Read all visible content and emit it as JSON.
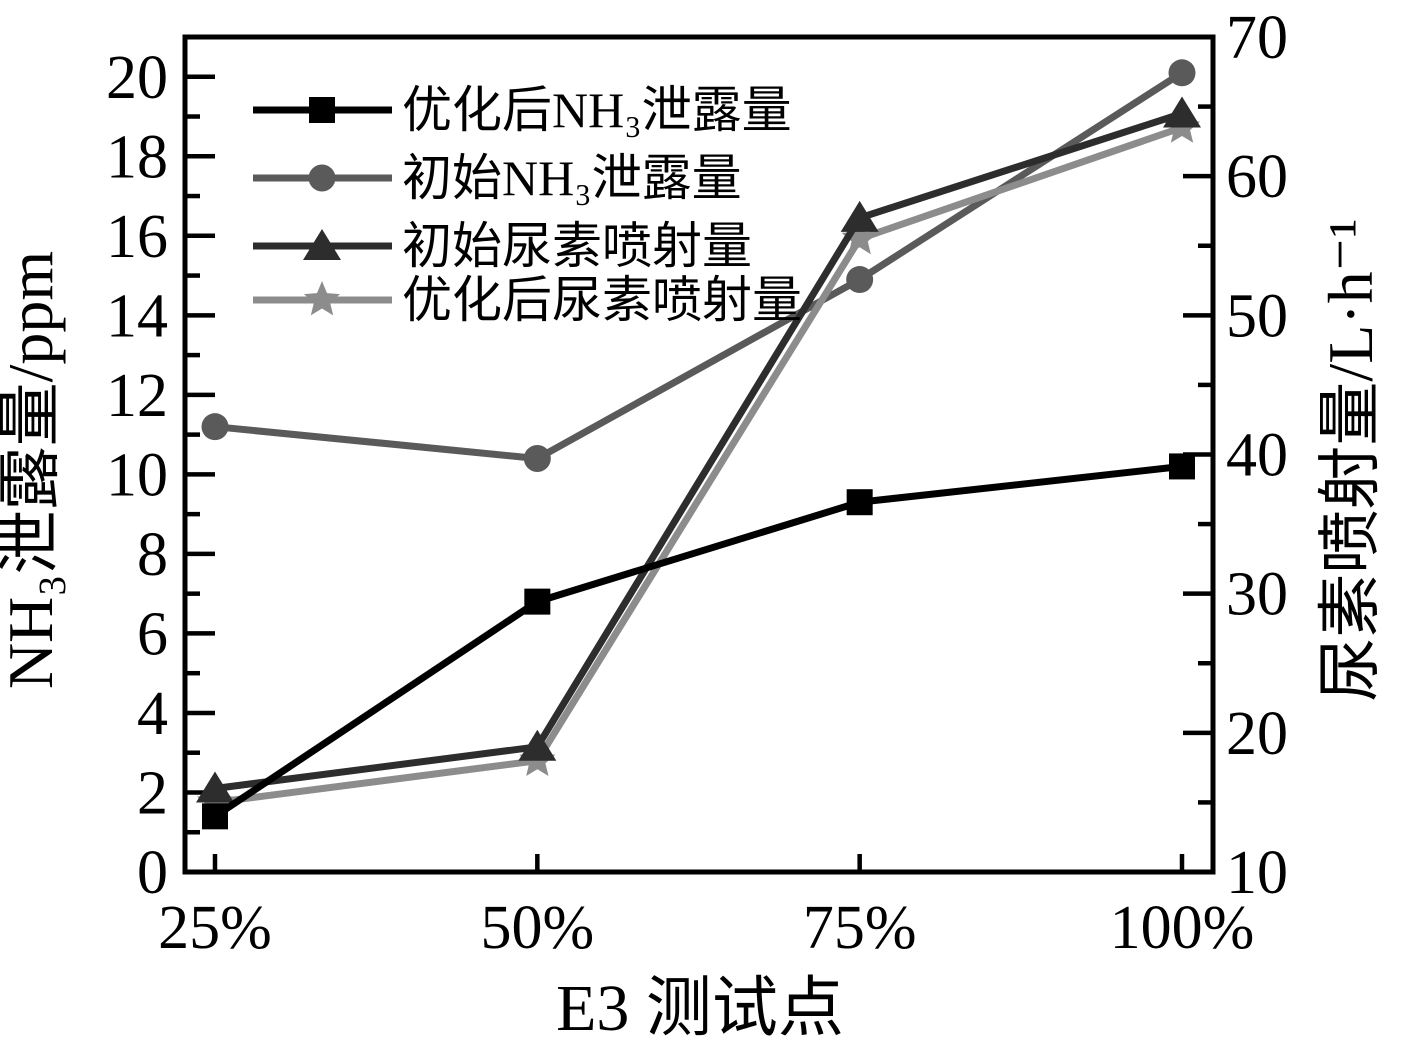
{
  "chart_data": {
    "type": "line",
    "title": "",
    "categories": [
      "25%",
      "50%",
      "75%",
      "100%"
    ],
    "xlabel": "E3 测试点",
    "left_axis": {
      "label": "NH₃泄露量/ppm",
      "min": 0,
      "max": 21,
      "major_ticks": [
        0,
        2,
        4,
        6,
        8,
        10,
        12,
        14,
        16,
        18,
        20
      ],
      "minor_step": 1,
      "unit": "ppm"
    },
    "right_axis": {
      "label": "尿素喷射量/L·h⁻¹",
      "min": 10,
      "max": 70,
      "major_ticks": [
        10,
        20,
        30,
        40,
        50,
        60,
        70
      ],
      "minor_step": 5,
      "unit": "L·h⁻¹"
    },
    "grid": false,
    "legend_position": "top-left",
    "legend_items": [
      "优化后NH₃泄露量",
      "初始NH₃泄露量",
      "初始尿素喷射量",
      "优化后尿素喷射量"
    ],
    "series": [
      {
        "id": "optimized-nh3-leakage",
        "name": "优化后NH₃泄露量",
        "axis": "left",
        "marker": "square",
        "color": "#000000",
        "values": [
          1.4,
          6.8,
          9.3,
          10.2
        ]
      },
      {
        "id": "initial-nh3-leakage",
        "name": "初始NH₃泄露量",
        "axis": "left",
        "marker": "circle",
        "color": "#5a5a5a",
        "values": [
          11.2,
          10.4,
          14.9,
          20.1
        ]
      },
      {
        "id": "initial-urea-injection",
        "name": "初始尿素喷射量",
        "axis": "right",
        "marker": "triangle",
        "color": "#2d2d2d",
        "values": [
          16,
          19,
          57,
          64.5
        ]
      },
      {
        "id": "optimized-urea-injection",
        "name": "优化后尿素喷射量",
        "axis": "right",
        "marker": "star",
        "color": "#8c8c8c",
        "values": [
          15,
          18,
          55.5,
          63.5
        ]
      }
    ]
  }
}
